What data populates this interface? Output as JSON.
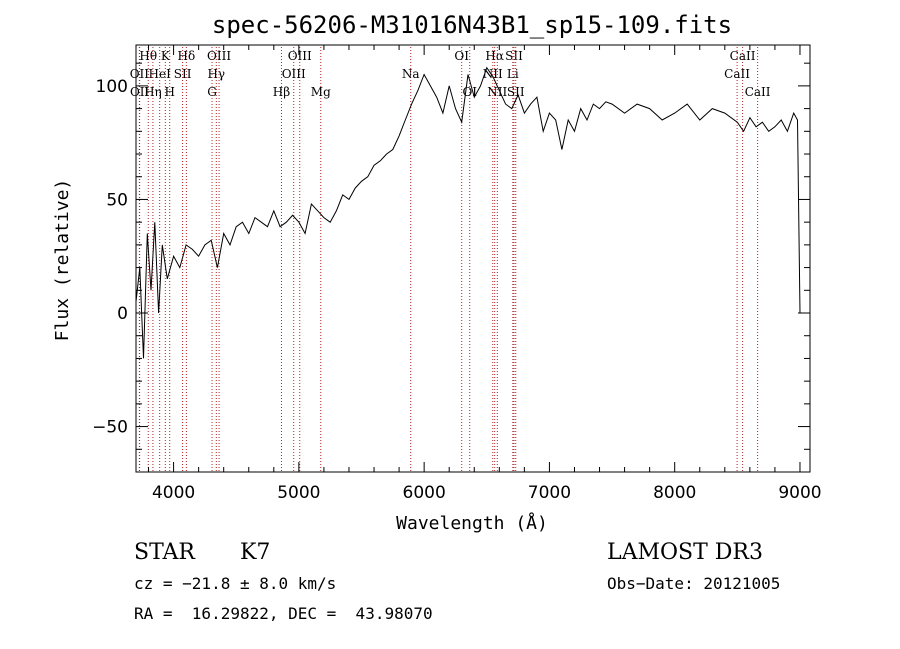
{
  "chart_data": {
    "type": "line",
    "title": "spec-56206-M31016N43B1_sp15-109.fits",
    "xlabel": "Wavelength (Å)",
    "ylabel": "Flux (relative)",
    "xlim": [
      3700,
      9080
    ],
    "ylim": [
      -70,
      118
    ],
    "xticks": [
      4000,
      5000,
      6000,
      7000,
      8000,
      9000
    ],
    "xtick_labels": [
      "4000",
      "5000",
      "6000",
      "7000",
      "8000",
      "9000"
    ],
    "yticks": [
      -50,
      0,
      50,
      100
    ],
    "ytick_labels": [
      "−50",
      "0",
      "50",
      "100"
    ],
    "series": [
      {
        "name": "spectrum",
        "x": [
          3700,
          3730,
          3760,
          3790,
          3820,
          3850,
          3880,
          3910,
          3950,
          4000,
          4050,
          4100,
          4150,
          4200,
          4250,
          4300,
          4350,
          4400,
          4450,
          4500,
          4550,
          4600,
          4650,
          4700,
          4750,
          4800,
          4850,
          4900,
          4950,
          5000,
          5050,
          5100,
          5150,
          5200,
          5250,
          5300,
          5350,
          5400,
          5450,
          5500,
          5550,
          5600,
          5650,
          5700,
          5750,
          5800,
          5850,
          5900,
          5950,
          6000,
          6050,
          6100,
          6150,
          6200,
          6250,
          6300,
          6350,
          6400,
          6450,
          6500,
          6550,
          6600,
          6650,
          6700,
          6750,
          6800,
          6850,
          6900,
          6950,
          7000,
          7050,
          7100,
          7150,
          7200,
          7250,
          7300,
          7350,
          7400,
          7450,
          7500,
          7600,
          7700,
          7800,
          7900,
          8000,
          8100,
          8200,
          8300,
          8400,
          8500,
          8550,
          8600,
          8650,
          8700,
          8750,
          8800,
          8850,
          8900,
          8950,
          8980,
          9000
        ],
        "y": [
          5,
          20,
          -20,
          35,
          10,
          40,
          0,
          30,
          15,
          25,
          20,
          30,
          28,
          25,
          30,
          32,
          20,
          35,
          30,
          38,
          40,
          35,
          42,
          40,
          38,
          45,
          38,
          40,
          43,
          40,
          35,
          48,
          45,
          42,
          40,
          45,
          52,
          50,
          55,
          58,
          60,
          65,
          67,
          70,
          72,
          78,
          85,
          92,
          98,
          105,
          100,
          95,
          88,
          100,
          90,
          84,
          105,
          95,
          100,
          108,
          104,
          98,
          92,
          90,
          96,
          88,
          92,
          95,
          80,
          88,
          85,
          72,
          85,
          80,
          90,
          85,
          92,
          90,
          93,
          92,
          88,
          92,
          90,
          85,
          88,
          92,
          85,
          90,
          88,
          84,
          80,
          86,
          82,
          84,
          80,
          82,
          85,
          80,
          88,
          85,
          0
        ]
      }
    ],
    "line_markers": [
      {
        "label": "Hθ",
        "x": 3798,
        "row": 0
      },
      {
        "label": "OII",
        "x": 3727,
        "row": 1
      },
      {
        "label": "OII",
        "x": 3729,
        "row": 2
      },
      {
        "label": "K",
        "x": 3934,
        "row": 0
      },
      {
        "label": "HeI",
        "x": 3889,
        "row": 1
      },
      {
        "label": "Hη",
        "x": 3835,
        "row": 2
      },
      {
        "label": "H",
        "x": 3969,
        "row": 2
      },
      {
        "label": "Hδ",
        "x": 4102,
        "row": 0
      },
      {
        "label": "SII",
        "x": 4072,
        "row": 1
      },
      {
        "label": "OIII",
        "x": 4363,
        "row": 0
      },
      {
        "label": "Hγ",
        "x": 4341,
        "row": 1
      },
      {
        "label": "G",
        "x": 4307,
        "row": 2
      },
      {
        "label": "OIII",
        "x": 5007,
        "row": 0
      },
      {
        "label": "OIII",
        "x": 4959,
        "row": 1
      },
      {
        "label": "Hβ",
        "x": 4861,
        "row": 2
      },
      {
        "label": "Mg",
        "x": 5175,
        "row": 2
      },
      {
        "label": "Na",
        "x": 5893,
        "row": 1
      },
      {
        "label": "OI",
        "x": 6300,
        "row": 0
      },
      {
        "label": "OI",
        "x": 6364,
        "row": 2
      },
      {
        "label": "Hα",
        "x": 6563,
        "row": 0
      },
      {
        "label": "NII",
        "x": 6548,
        "row": 1
      },
      {
        "label": "NII",
        "x": 6584,
        "row": 2
      },
      {
        "label": "SII",
        "x": 6717,
        "row": 0
      },
      {
        "label": "Li",
        "x": 6708,
        "row": 1
      },
      {
        "label": "SII",
        "x": 6731,
        "row": 2
      },
      {
        "label": "CaII",
        "x": 8542,
        "row": 0
      },
      {
        "label": "CaII",
        "x": 8498,
        "row": 1
      },
      {
        "label": "CaII",
        "x": 8662,
        "row": 2
      }
    ]
  },
  "info": {
    "class": "STAR",
    "subclass": "K7",
    "cz": "cz = −21.8 ± 8.0 km/s",
    "coords": "RA =  16.29822, DEC =  43.98070",
    "survey": "LAMOST DR3",
    "obs_date": "Obs−Date: 20121005"
  },
  "colors": {
    "line_marker": "#b22222",
    "spectrum": "#000000",
    "axis": "#000000"
  }
}
